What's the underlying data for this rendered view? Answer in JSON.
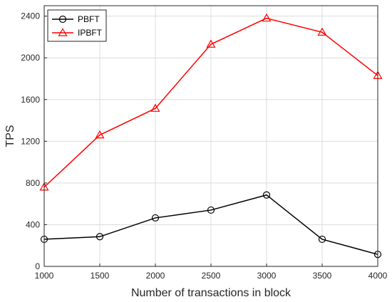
{
  "chart_data": {
    "type": "line",
    "xlabel": "Number of transactions in block",
    "ylabel": "TPS",
    "x": [
      1000,
      1500,
      2000,
      2500,
      3000,
      3500,
      4000
    ],
    "xlim": [
      1000,
      4000
    ],
    "ylim": [
      0,
      2500
    ],
    "xticks": [
      "1000",
      "1500",
      "2000",
      "2500",
      "3000",
      "3500",
      "4000"
    ],
    "yticks": [
      "0",
      "400",
      "800",
      "1200",
      "1600",
      "2000",
      "2400"
    ],
    "grid": true,
    "legend_position": "top-left",
    "series": [
      {
        "name": "PBFT",
        "color": "#000000",
        "marker": "circle",
        "values": [
          260,
          285,
          465,
          540,
          685,
          260,
          115
        ]
      },
      {
        "name": "IPBFT",
        "color": "#ff0000",
        "marker": "triangle",
        "values": [
          760,
          1260,
          1515,
          2130,
          2380,
          2245,
          1830
        ]
      }
    ]
  }
}
